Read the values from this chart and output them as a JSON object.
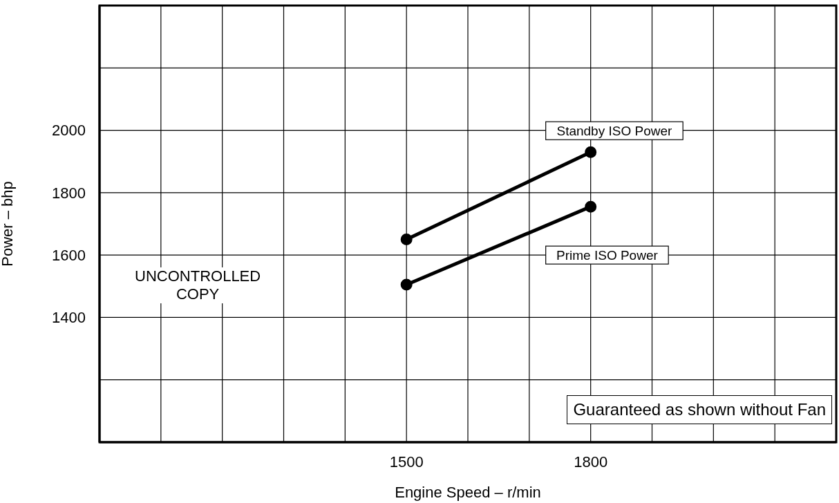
{
  "chart_data": {
    "type": "line",
    "xlabel": "Engine Speed – r/min",
    "ylabel": "Power – bhp",
    "xlim": [
      1000,
      2200
    ],
    "xticks": [
      {
        "value": 1000,
        "label": null
      },
      {
        "value": 1100,
        "label": null
      },
      {
        "value": 1200,
        "label": null
      },
      {
        "value": 1300,
        "label": null
      },
      {
        "value": 1400,
        "label": null
      },
      1500,
      {
        "value": 1600,
        "label": null
      },
      {
        "value": 1700,
        "label": null
      },
      1800,
      {
        "value": 1900,
        "label": null
      },
      {
        "value": 2000,
        "label": null
      },
      {
        "value": 2100,
        "label": null
      },
      {
        "value": 2200,
        "label": null
      }
    ],
    "ylim": [
      1000,
      2400
    ],
    "yticks": [
      {
        "value": 1000,
        "label": null
      },
      {
        "value": 1200,
        "label": null
      },
      1400,
      1600,
      1800,
      2000,
      {
        "value": 2200,
        "label": null
      },
      {
        "value": 2400,
        "label": null
      }
    ],
    "x": [
      1500,
      1800
    ],
    "series": [
      {
        "name": "Standby ISO Power",
        "color": "#000000",
        "values": [
          1650,
          1930
        ]
      },
      {
        "name": "Prime ISO Power",
        "color": "#000000",
        "values": [
          1505,
          1755
        ]
      }
    ],
    "annotations": [
      "UNCONTROLLED\nCOPY",
      "Guaranteed as shown without Fan"
    ],
    "grid": true,
    "legend": false,
    "marker": "circle",
    "line_style": "solid"
  }
}
